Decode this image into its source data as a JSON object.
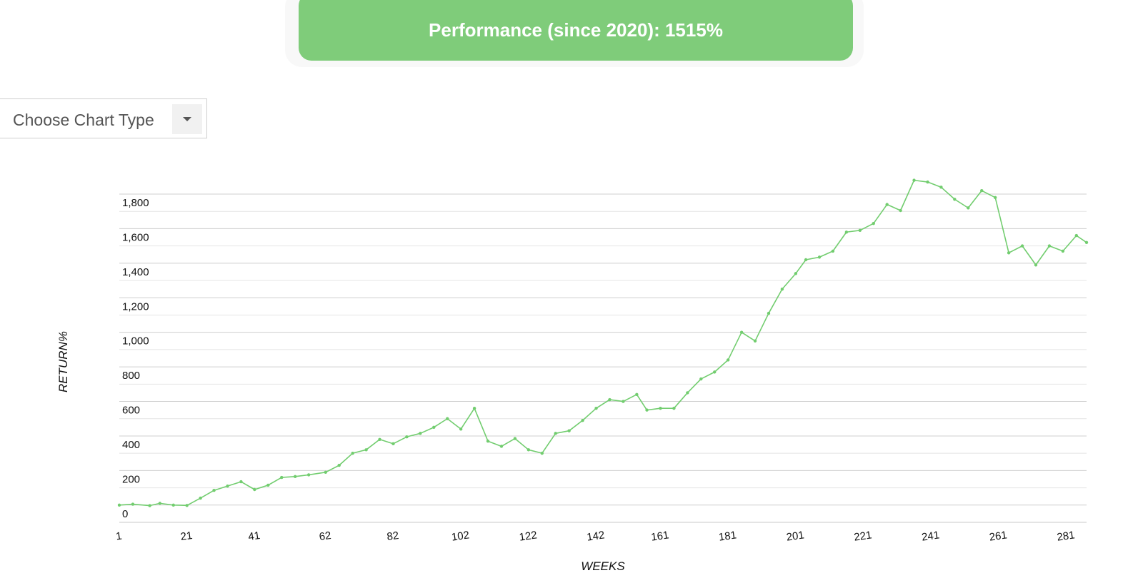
{
  "banner": {
    "title": "Performance (since 2020): 1515%"
  },
  "chart_selector": {
    "label": "Choose Chart Type",
    "icon": "chevron-down-icon"
  },
  "chart_data": {
    "type": "line",
    "title": "",
    "xlabel": "WEEKS",
    "ylabel": "RETURN%",
    "x_ticks": [
      "1",
      "21",
      "41",
      "62",
      "82",
      "102",
      "122",
      "142",
      "161",
      "181",
      "201",
      "221",
      "241",
      "261",
      "281"
    ],
    "y_ticks": [
      "0",
      "200",
      "400",
      "600",
      "800",
      "1,000",
      "1,200",
      "1,400",
      "1,600",
      "1,800"
    ],
    "xlim": [
      1,
      287
    ],
    "ylim": [
      -100,
      1800
    ],
    "grid": true,
    "line_color": "#72cd6f",
    "series": [
      {
        "x": [
          1,
          5,
          10,
          13,
          17,
          21,
          25,
          29,
          33,
          37,
          41,
          45,
          49,
          53,
          57,
          62,
          66,
          70,
          74,
          78,
          82,
          86,
          90,
          94,
          98,
          102,
          106,
          110,
          114,
          118,
          122,
          126,
          130,
          134,
          138,
          142,
          146,
          150,
          154,
          157,
          161,
          165,
          169,
          173,
          177,
          181,
          185,
          189,
          193,
          197,
          201,
          204,
          208,
          212,
          216,
          220,
          224,
          228,
          232,
          236,
          240,
          244,
          248,
          252,
          256,
          260,
          264,
          268,
          272,
          276,
          280,
          284,
          287
        ],
        "y": [
          0,
          5,
          -3,
          10,
          0,
          -2,
          40,
          85,
          110,
          135,
          90,
          115,
          160,
          165,
          175,
          190,
          230,
          300,
          320,
          380,
          355,
          395,
          415,
          450,
          500,
          440,
          560,
          370,
          340,
          385,
          320,
          300,
          415,
          430,
          490,
          560,
          610,
          600,
          640,
          550,
          560,
          560,
          650,
          730,
          770,
          840,
          1000,
          950,
          1110,
          1250,
          1340,
          1420,
          1435,
          1470,
          1580,
          1590,
          1630,
          1740,
          1705,
          1880,
          1870,
          1840,
          1770,
          1720,
          1820,
          1780,
          1460,
          1500,
          1390,
          1500,
          1470,
          1560,
          1520
        ]
      }
    ]
  }
}
